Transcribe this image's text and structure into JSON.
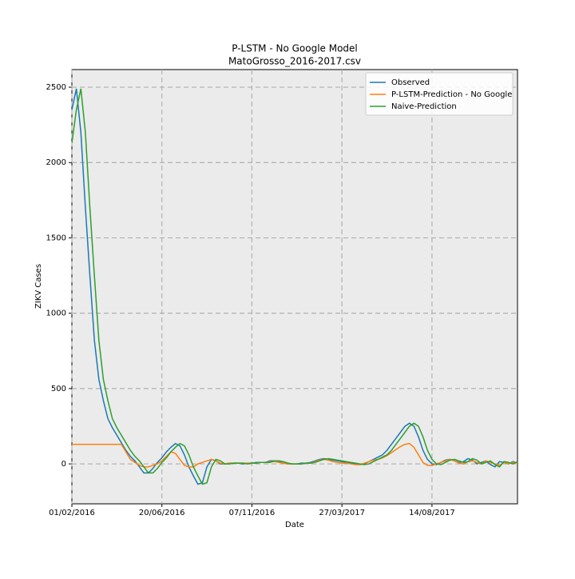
{
  "chart_data": {
    "type": "line",
    "title": "P-LSTM - No Google Model",
    "subtitle": "MatoGrosso_2016-2017.csv",
    "xlabel": "Date",
    "ylabel": "ZIKV Cases",
    "x": [
      "2016-02-01",
      "2016-02-08",
      "2016-02-15",
      "2016-02-22",
      "2016-02-29",
      "2016-03-07",
      "2016-03-14",
      "2016-03-21",
      "2016-03-28",
      "2016-04-04",
      "2016-04-11",
      "2016-04-18",
      "2016-04-25",
      "2016-05-02",
      "2016-05-09",
      "2016-05-16",
      "2016-05-23",
      "2016-05-30",
      "2016-06-06",
      "2016-06-13",
      "2016-06-20",
      "2016-06-27",
      "2016-07-04",
      "2016-07-11",
      "2016-07-18",
      "2016-07-25",
      "2016-08-01",
      "2016-08-08",
      "2016-08-15",
      "2016-08-22",
      "2016-08-29",
      "2016-09-05",
      "2016-09-12",
      "2016-09-19",
      "2016-09-26",
      "2016-10-03",
      "2016-10-10",
      "2016-10-17",
      "2016-10-24",
      "2016-10-31",
      "2016-11-07",
      "2016-11-14",
      "2016-11-21",
      "2016-11-28",
      "2016-12-05",
      "2016-12-12",
      "2016-12-19",
      "2016-12-26",
      "2017-01-02",
      "2017-01-09",
      "2017-01-16",
      "2017-01-23",
      "2017-01-30",
      "2017-02-06",
      "2017-02-13",
      "2017-02-20",
      "2017-02-27",
      "2017-03-06",
      "2017-03-13",
      "2017-03-20",
      "2017-03-27",
      "2017-04-03",
      "2017-04-10",
      "2017-04-17",
      "2017-04-24",
      "2017-05-01",
      "2017-05-08",
      "2017-05-15",
      "2017-05-22",
      "2017-05-29",
      "2017-06-05",
      "2017-06-12",
      "2017-06-19",
      "2017-06-26",
      "2017-07-03",
      "2017-07-10",
      "2017-07-17",
      "2017-07-24",
      "2017-07-31",
      "2017-08-07",
      "2017-08-14",
      "2017-08-21",
      "2017-08-28",
      "2017-09-04",
      "2017-09-11",
      "2017-09-18",
      "2017-09-25",
      "2017-10-02",
      "2017-10-09",
      "2017-10-16",
      "2017-10-23",
      "2017-10-30",
      "2017-11-06",
      "2017-11-13",
      "2017-11-20",
      "2017-11-27",
      "2017-12-04",
      "2017-12-11",
      "2017-12-18",
      "2017-12-25"
    ],
    "series": [
      {
        "name": "Observed",
        "color": "#1f77b4",
        "values": [
          2350,
          2490,
          2200,
          1700,
          1250,
          820,
          560,
          420,
          300,
          240,
          190,
          140,
          90,
          50,
          20,
          -20,
          -60,
          -60,
          -30,
          10,
          40,
          80,
          110,
          135,
          120,
          60,
          -20,
          -80,
          -135,
          -125,
          -20,
          30,
          20,
          0,
          0,
          5,
          5,
          5,
          0,
          5,
          5,
          10,
          10,
          10,
          20,
          20,
          15,
          5,
          0,
          0,
          0,
          5,
          5,
          10,
          20,
          30,
          35,
          30,
          25,
          20,
          15,
          10,
          5,
          0,
          -5,
          0,
          15,
          30,
          45,
          60,
          90,
          130,
          170,
          210,
          250,
          270,
          250,
          180,
          90,
          30,
          0,
          -5,
          10,
          25,
          30,
          20,
          10,
          15,
          35,
          25,
          0,
          10,
          20,
          -5,
          -20,
          15,
          10,
          0,
          15,
          5
        ]
      },
      {
        "name": "P-LSTM-Prediction - No Google",
        "color": "#ff7f0e",
        "values": [
          130,
          130,
          130,
          130,
          130,
          130,
          130,
          130,
          130,
          130,
          130,
          130,
          80,
          30,
          10,
          -10,
          -20,
          -20,
          -10,
          0,
          20,
          50,
          80,
          70,
          30,
          -10,
          -20,
          -20,
          0,
          10,
          20,
          30,
          20,
          5,
          0,
          5,
          5,
          5,
          5,
          5,
          5,
          5,
          10,
          10,
          15,
          15,
          10,
          5,
          0,
          0,
          0,
          0,
          5,
          5,
          15,
          25,
          30,
          25,
          15,
          10,
          5,
          5,
          0,
          -5,
          -5,
          5,
          15,
          25,
          30,
          40,
          55,
          75,
          95,
          115,
          130,
          135,
          110,
          60,
          10,
          -10,
          -10,
          0,
          10,
          20,
          30,
          20,
          5,
          0,
          15,
          20,
          10,
          0,
          20,
          10,
          0,
          -10,
          10,
          0,
          10,
          5
        ]
      },
      {
        "name": "Naive-Prediction",
        "color": "#2ca02c",
        "values": [
          2130,
          2350,
          2490,
          2200,
          1700,
          1250,
          820,
          560,
          420,
          300,
          240,
          190,
          140,
          90,
          50,
          20,
          -20,
          -60,
          -60,
          -30,
          10,
          40,
          80,
          110,
          135,
          120,
          60,
          -20,
          -80,
          -135,
          -125,
          -20,
          30,
          20,
          0,
          0,
          5,
          5,
          5,
          0,
          5,
          5,
          10,
          10,
          10,
          20,
          20,
          15,
          5,
          0,
          0,
          0,
          5,
          5,
          10,
          20,
          30,
          35,
          30,
          25,
          20,
          15,
          10,
          5,
          0,
          -5,
          0,
          15,
          30,
          45,
          60,
          90,
          130,
          170,
          210,
          250,
          270,
          250,
          180,
          90,
          30,
          0,
          -5,
          10,
          25,
          30,
          20,
          10,
          15,
          35,
          25,
          0,
          10,
          20,
          -5,
          -20,
          15,
          10,
          0,
          15
        ]
      }
    ],
    "xlim": [
      "2016-02-01",
      "2017-12-25"
    ],
    "xticks": [
      {
        "value": "2016-02-01",
        "label": "01/02/2016"
      },
      {
        "value": "2016-06-20",
        "label": "20/06/2016"
      },
      {
        "value": "2016-11-07",
        "label": "07/11/2016"
      },
      {
        "value": "2017-03-27",
        "label": "27/03/2017"
      },
      {
        "value": "2017-08-14",
        "label": "14/08/2017"
      }
    ],
    "ylim": [
      -265,
      2617
    ],
    "yticks": [
      0,
      500,
      1000,
      1500,
      2000,
      2500
    ],
    "grid": true,
    "legend": "upper right"
  }
}
